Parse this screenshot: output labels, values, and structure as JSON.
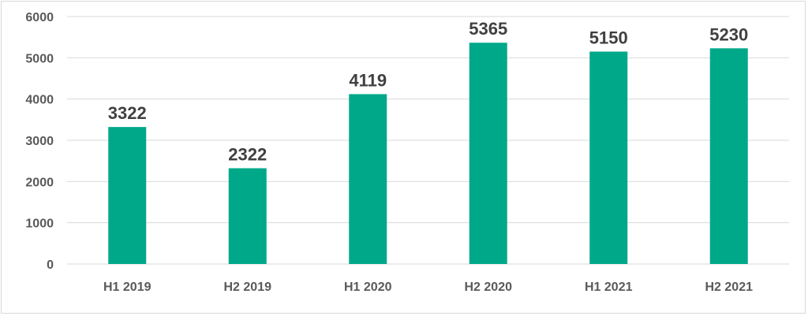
{
  "chart_data": {
    "type": "bar",
    "categories": [
      "H1 2019",
      "H2 2019",
      "H1 2020",
      "H2 2020",
      "H1 2021",
      "H2 2021"
    ],
    "values": [
      3322,
      2322,
      4119,
      5365,
      5150,
      5230
    ],
    "ylim": [
      0,
      6000
    ],
    "yticks": [
      0,
      1000,
      2000,
      3000,
      4000,
      5000,
      6000
    ],
    "grid": true,
    "bar_color": "#00a88a",
    "title": "",
    "xlabel": "",
    "ylabel": ""
  }
}
